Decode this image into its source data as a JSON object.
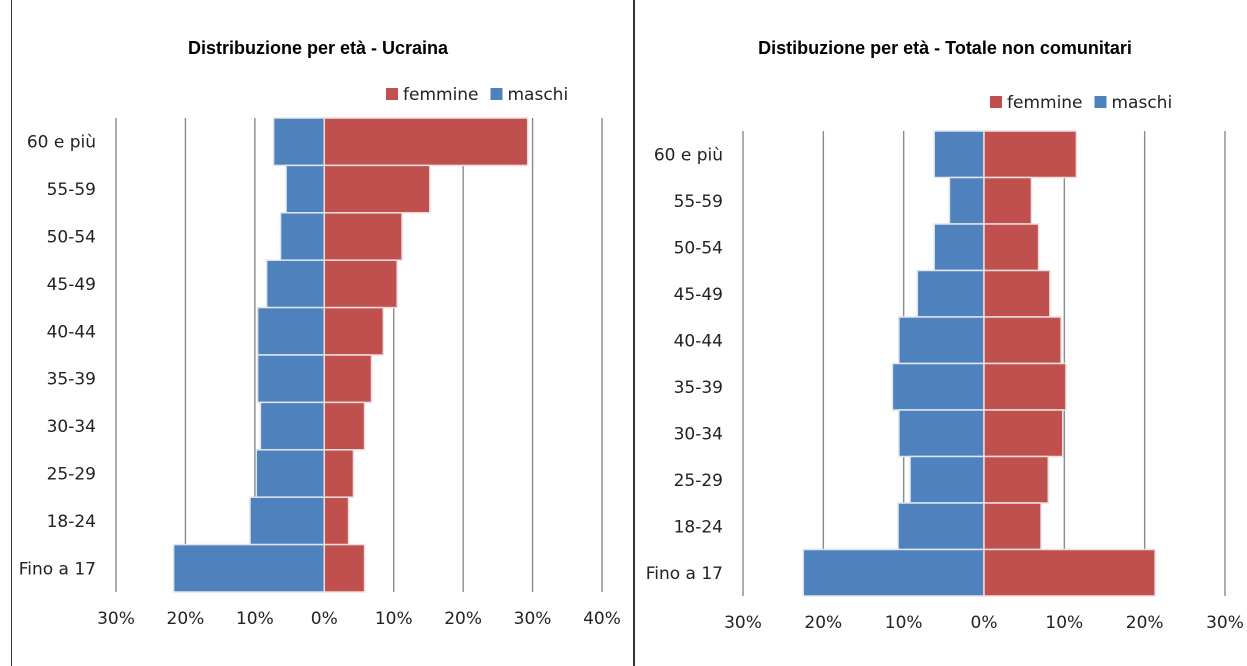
{
  "chart_data": [
    {
      "type": "bar",
      "orientation": "horizontal",
      "title": "Distribuzione per età - Ucraina",
      "categories": [
        "60 e più",
        "55-59",
        "50-54",
        "45-49",
        "40-44",
        "35-39",
        "30-34",
        "25-29",
        "18-24",
        "Fino a 17"
      ],
      "series": [
        {
          "name": "femmine",
          "color": "#c0504d",
          "values": [
            29.3,
            15.2,
            11.2,
            10.5,
            8.5,
            6.8,
            5.8,
            4.2,
            3.5,
            5.8
          ]
        },
        {
          "name": "maschi",
          "color": "#4f81bd",
          "values": [
            7.3,
            5.5,
            6.3,
            8.3,
            9.6,
            9.6,
            9.2,
            9.8,
            10.7,
            21.7
          ]
        }
      ],
      "legend": [
        "femmine",
        "maschi"
      ],
      "legend_position": "top-right",
      "xlim": [
        -30,
        40
      ],
      "xticks": [
        "30%",
        "20%",
        "10%",
        "0%",
        "10%",
        "20%",
        "30%",
        "40%"
      ],
      "grid": true
    },
    {
      "type": "bar",
      "orientation": "horizontal",
      "title": "Distibuzione per età - Totale non comunitari",
      "categories": [
        "60 e più",
        "55-59",
        "50-54",
        "45-49",
        "40-44",
        "35-39",
        "30-34",
        "25-29",
        "18-24",
        "Fino a 17"
      ],
      "series": [
        {
          "name": "femmine",
          "color": "#c0504d",
          "values": [
            11.5,
            5.9,
            6.8,
            8.2,
            9.6,
            10.2,
            9.8,
            8.0,
            7.1,
            21.3
          ]
        },
        {
          "name": "maschi",
          "color": "#4f81bd",
          "values": [
            6.2,
            4.3,
            6.2,
            8.3,
            10.6,
            11.4,
            10.6,
            9.2,
            10.7,
            22.5
          ]
        }
      ],
      "legend": [
        "femmine",
        "maschi"
      ],
      "legend_position": "top-right",
      "xlim": [
        -30,
        30
      ],
      "xticks": [
        "30%",
        "20%",
        "10%",
        "0%",
        "10%",
        "20%",
        "30%"
      ],
      "grid": true
    }
  ]
}
